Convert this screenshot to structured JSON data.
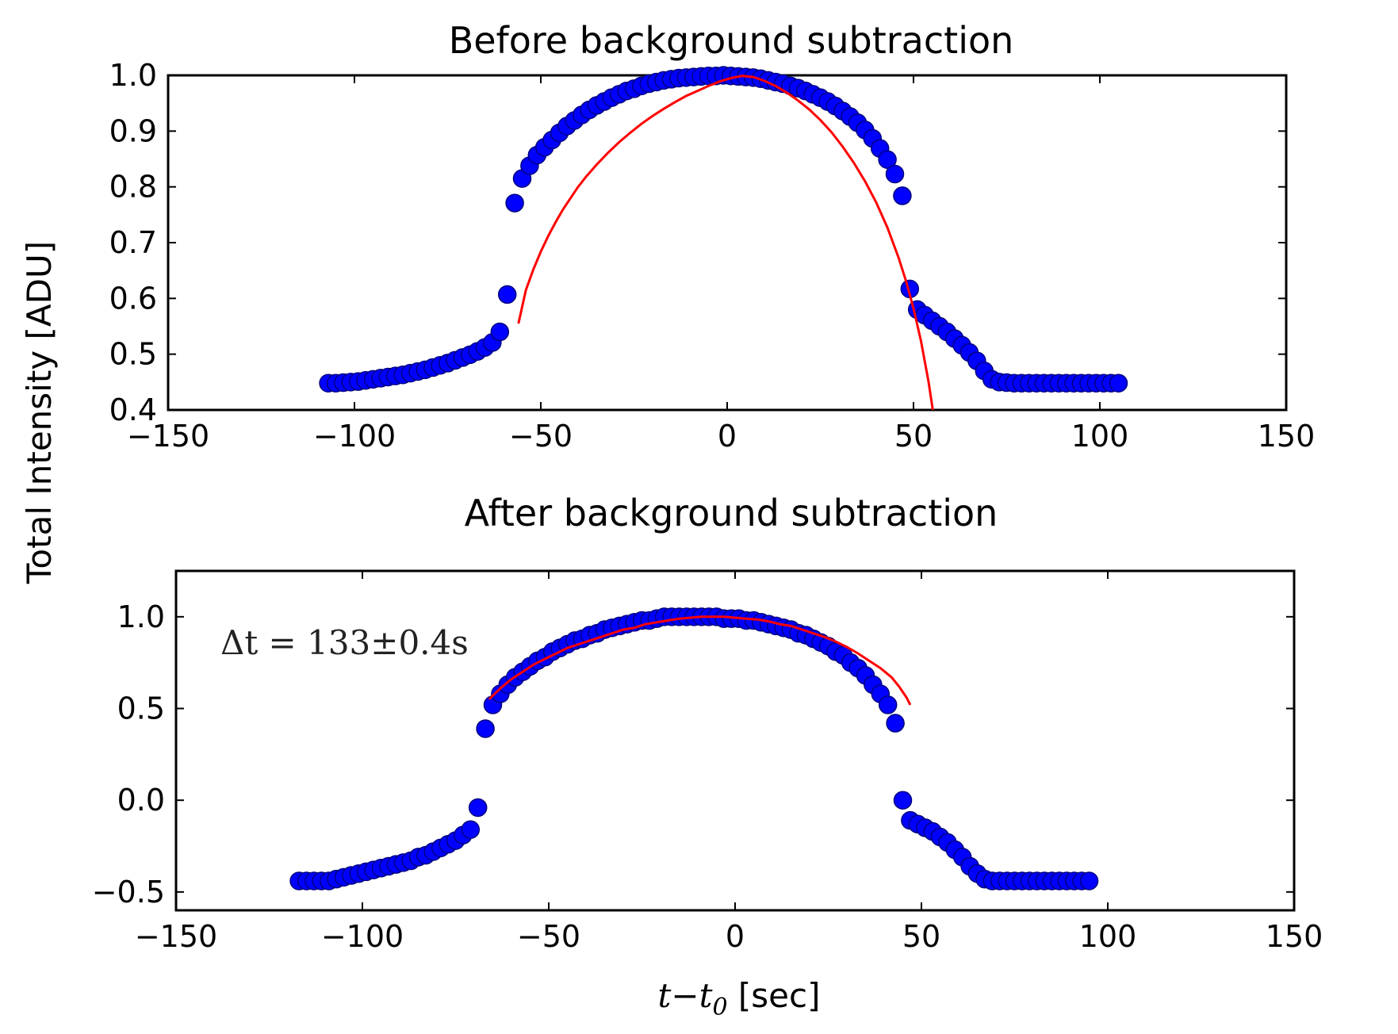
{
  "chart_data": [
    {
      "type": "scatter",
      "title": "Before background subtraction",
      "xlim": [
        -150,
        150
      ],
      "ylim": [
        0.4,
        1.0
      ],
      "xticks": [
        "−150",
        "−100",
        "−50",
        "0",
        "50",
        "100",
        "150"
      ],
      "xtick_values": [
        -150,
        -100,
        -50,
        0,
        50,
        100,
        150
      ],
      "yticks": [
        "0.4",
        "0.5",
        "0.6",
        "0.7",
        "0.8",
        "0.9",
        "1.0"
      ],
      "ytick_values": [
        0.4,
        0.5,
        0.6,
        0.7,
        0.8,
        0.9,
        1.0
      ],
      "series": [
        {
          "marker": "circle",
          "color": "#0000ff",
          "edge_color": "#000080",
          "x": [
            -107,
            -105,
            -103,
            -101,
            -99,
            -97,
            -95,
            -93,
            -91,
            -89,
            -87,
            -85,
            -83,
            -81,
            -79,
            -77,
            -75,
            -73,
            -71,
            -69,
            -67,
            -65,
            -63,
            -61,
            -59,
            -57,
            -55,
            -53,
            -51,
            -49,
            -47,
            -45,
            -43,
            -41,
            -39,
            -37,
            -35,
            -33,
            -31,
            -29,
            -27,
            -25,
            -23,
            -21,
            -19,
            -17,
            -15,
            -13,
            -11,
            -9,
            -7,
            -5,
            -3,
            -1,
            1,
            3,
            5,
            7,
            9,
            11,
            13,
            15,
            17,
            19,
            21,
            23,
            25,
            27,
            29,
            31,
            33,
            35,
            37,
            39,
            41,
            43,
            45,
            47,
            49,
            51,
            53,
            55,
            57,
            59,
            61,
            63,
            65,
            67,
            69,
            71,
            73,
            75,
            77,
            79,
            81,
            83,
            85,
            87,
            89,
            91,
            93,
            95,
            97,
            99,
            101,
            103,
            105
          ],
          "y": [
            0.448,
            0.448,
            0.449,
            0.45,
            0.451,
            0.453,
            0.455,
            0.457,
            0.459,
            0.461,
            0.463,
            0.466,
            0.469,
            0.472,
            0.476,
            0.48,
            0.484,
            0.489,
            0.494,
            0.499,
            0.505,
            0.512,
            0.521,
            0.54,
            0.607,
            0.771,
            0.815,
            0.838,
            0.857,
            0.871,
            0.884,
            0.897,
            0.909,
            0.919,
            0.929,
            0.938,
            0.946,
            0.953,
            0.96,
            0.966,
            0.972,
            0.976,
            0.981,
            0.985,
            0.988,
            0.991,
            0.993,
            0.995,
            0.996,
            0.997,
            0.998,
            0.999,
            0.999,
            1.0,
            0.999,
            0.998,
            0.997,
            0.996,
            0.994,
            0.991,
            0.988,
            0.985,
            0.981,
            0.977,
            0.972,
            0.966,
            0.96,
            0.953,
            0.945,
            0.936,
            0.926,
            0.915,
            0.902,
            0.887,
            0.869,
            0.849,
            0.823,
            0.784,
            0.617,
            0.58,
            0.57,
            0.56,
            0.55,
            0.54,
            0.528,
            0.516,
            0.503,
            0.488,
            0.47,
            0.455,
            0.45,
            0.449,
            0.448,
            0.448,
            0.448,
            0.448,
            0.448,
            0.448,
            0.448,
            0.448,
            0.448,
            0.448,
            0.448,
            0.448,
            0.448,
            0.448,
            0.448
          ]
        },
        {
          "type": "line",
          "color": "#ff0000",
          "x": [
            -56,
            -54,
            -52,
            -50,
            -48,
            -46,
            -44,
            -42,
            -40,
            -38,
            -35,
            -32,
            -29,
            -26,
            -23,
            -20,
            -17,
            -14,
            -11,
            -8,
            -5,
            -2,
            1,
            4,
            7,
            10,
            13,
            16,
            19,
            22,
            25,
            28,
            31,
            34,
            37,
            40,
            43,
            46,
            48,
            50,
            52,
            54,
            55,
            56,
            57
          ],
          "y": [
            0.555,
            0.615,
            0.652,
            0.684,
            0.712,
            0.737,
            0.76,
            0.78,
            0.8,
            0.817,
            0.84,
            0.861,
            0.88,
            0.897,
            0.913,
            0.927,
            0.94,
            0.952,
            0.963,
            0.972,
            0.981,
            0.989,
            0.995,
            0.999,
            0.997,
            0.99,
            0.981,
            0.969,
            0.955,
            0.939,
            0.92,
            0.898,
            0.872,
            0.843,
            0.81,
            0.772,
            0.727,
            0.673,
            0.631,
            0.582,
            0.524,
            0.452,
            0.408,
            0.357,
            0.298
          ]
        }
      ]
    },
    {
      "type": "scatter",
      "title": "After background subtraction",
      "xlim": [
        -150,
        150
      ],
      "ylim": [
        -0.6,
        1.25
      ],
      "xticks": [
        "−150",
        "−100",
        "−50",
        "0",
        "50",
        "100",
        "150"
      ],
      "xtick_values": [
        -150,
        -100,
        -50,
        0,
        50,
        100,
        150
      ],
      "yticks": [
        "−0.5",
        "0.0",
        "0.5",
        "1.0"
      ],
      "ytick_values": [
        -0.5,
        0.0,
        0.5,
        1.0
      ],
      "annotation": "Δt = 133±0.4s",
      "series": [
        {
          "marker": "circle",
          "color": "#0000ff",
          "edge_color": "#000080",
          "x": [
            -117,
            -115,
            -113,
            -111,
            -109,
            -107,
            -105,
            -103,
            -101,
            -99,
            -97,
            -95,
            -93,
            -91,
            -89,
            -87,
            -85,
            -83,
            -81,
            -79,
            -77,
            -75,
            -73,
            -71,
            -69,
            -67,
            -65,
            -63,
            -61,
            -59,
            -57,
            -55,
            -53,
            -51,
            -49,
            -47,
            -45,
            -43,
            -41,
            -39,
            -37,
            -35,
            -33,
            -31,
            -29,
            -27,
            -25,
            -23,
            -21,
            -19,
            -17,
            -15,
            -13,
            -11,
            -9,
            -7,
            -5,
            -3,
            -1,
            1,
            3,
            5,
            7,
            9,
            11,
            13,
            15,
            17,
            19,
            21,
            23,
            25,
            27,
            29,
            31,
            33,
            35,
            37,
            39,
            41,
            43,
            45,
            47,
            49,
            51,
            53,
            55,
            57,
            59,
            61,
            63,
            65,
            67,
            69,
            71,
            73,
            75,
            77,
            79,
            81,
            83,
            85,
            87,
            89,
            91,
            93,
            95
          ],
          "y": [
            -0.44,
            -0.44,
            -0.44,
            -0.44,
            -0.44,
            -0.43,
            -0.42,
            -0.41,
            -0.4,
            -0.39,
            -0.38,
            -0.37,
            -0.36,
            -0.35,
            -0.34,
            -0.33,
            -0.31,
            -0.3,
            -0.28,
            -0.26,
            -0.24,
            -0.22,
            -0.19,
            -0.16,
            -0.04,
            0.39,
            0.52,
            0.58,
            0.63,
            0.67,
            0.7,
            0.73,
            0.76,
            0.78,
            0.81,
            0.83,
            0.85,
            0.87,
            0.88,
            0.9,
            0.91,
            0.93,
            0.94,
            0.95,
            0.96,
            0.97,
            0.98,
            0.98,
            0.99,
            1.0,
            1.0,
            1.0,
            1.0,
            1.0,
            1.0,
            1.0,
            1.0,
            0.99,
            0.99,
            0.99,
            0.98,
            0.98,
            0.97,
            0.96,
            0.95,
            0.94,
            0.93,
            0.91,
            0.9,
            0.88,
            0.86,
            0.84,
            0.81,
            0.79,
            0.75,
            0.72,
            0.68,
            0.63,
            0.58,
            0.52,
            0.42,
            0.0,
            -0.11,
            -0.13,
            -0.15,
            -0.17,
            -0.2,
            -0.23,
            -0.27,
            -0.31,
            -0.36,
            -0.4,
            -0.43,
            -0.44,
            -0.44,
            -0.44,
            -0.44,
            -0.44,
            -0.44,
            -0.44,
            -0.44,
            -0.44,
            -0.44,
            -0.44,
            -0.44,
            -0.44,
            -0.44
          ]
        },
        {
          "type": "line",
          "color": "#ff0000",
          "x": [
            -66,
            -63,
            -60,
            -57,
            -54,
            -51,
            -48,
            -45,
            -42,
            -39,
            -36,
            -33,
            -30,
            -27,
            -24,
            -21,
            -18,
            -15,
            -12,
            -9,
            -6,
            -3,
            0,
            3,
            6,
            9,
            12,
            15,
            18,
            21,
            24,
            27,
            30,
            33,
            36,
            39,
            42,
            44,
            46,
            47
          ],
          "y": [
            0.55,
            0.61,
            0.66,
            0.7,
            0.74,
            0.77,
            0.8,
            0.83,
            0.85,
            0.87,
            0.89,
            0.91,
            0.93,
            0.94,
            0.96,
            0.97,
            0.98,
            0.99,
            0.995,
            1.0,
            1.0,
            1.0,
            0.995,
            0.99,
            0.985,
            0.975,
            0.96,
            0.95,
            0.93,
            0.91,
            0.89,
            0.865,
            0.835,
            0.8,
            0.76,
            0.72,
            0.67,
            0.62,
            0.56,
            0.52
          ]
        }
      ]
    }
  ],
  "labels": {
    "ylabel": "Total Intensity  [ADU]",
    "xlabel_math": "t−t",
    "xlabel_sub": "0",
    "xlabel_unit": " [sec]"
  }
}
